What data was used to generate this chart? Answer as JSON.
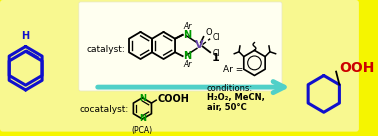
{
  "bg_outer": "#f5f500",
  "bg_inner": "#f8f870",
  "bg_white_box": "#f0f0e8",
  "arrow_color": "#50d0c8",
  "blue_ring": "#1010cc",
  "green_N": "#009900",
  "red_OOH": "#cc0000",
  "catalyst_text": "catalyst:",
  "cocatalyst_text": "cocatalyst:",
  "conditions_line1": "conditions:",
  "conditions_line2": "H₂O₂, MeCN,",
  "conditions_line3": "air, 50°C",
  "ar_eq": "Ar =",
  "pca_label": "(PCA)",
  "compound_num": "1",
  "H_label": "H",
  "OOH_label": "OOH",
  "Ar_label": "Ar",
  "N_label": "N",
  "V_label": "V",
  "O_label": "O",
  "Cl_label": "Cl",
  "COOH_label": "COOH"
}
